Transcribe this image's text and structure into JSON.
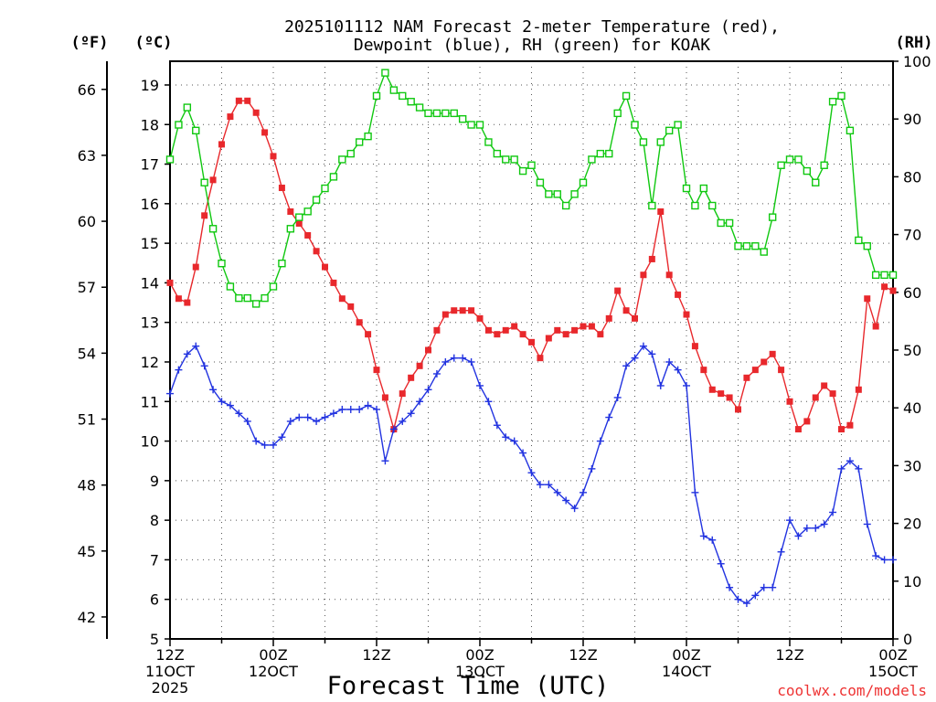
{
  "chart_data": {
    "type": "line",
    "title_line1": "2025101112 NAM Forecast 2-meter Temperature (red),",
    "title_line2": "Dewpoint (blue), RH (green) for KOAK",
    "xlabel": "Forecast Time (UTC)",
    "credit": "coolwx.com/models",
    "unit_f": "(ºF)",
    "unit_c": "(ºC)",
    "unit_rh": "(RH)",
    "x_range_hours": [
      0,
      84
    ],
    "c_range": [
      5,
      19.6
    ],
    "rh_range": [
      0,
      100
    ],
    "c_ticks": [
      "5",
      "6",
      "7",
      "8",
      "9",
      "10",
      "11",
      "12",
      "13",
      "14",
      "15",
      "16",
      "17",
      "18",
      "19"
    ],
    "f_ticks": [
      "42",
      "45",
      "48",
      "51",
      "54",
      "57",
      "60",
      "63",
      "66"
    ],
    "f_tick_values": [
      42,
      45,
      48,
      51,
      54,
      57,
      60,
      63,
      66
    ],
    "rh_ticks": [
      "0",
      "10",
      "20",
      "30",
      "40",
      "50",
      "60",
      "70",
      "80",
      "90",
      "100"
    ],
    "x_ticks": [
      {
        "hour": 0,
        "line1": "12Z",
        "line2": "11OCT",
        "line3": "2025"
      },
      {
        "hour": 12,
        "line1": "00Z",
        "line2": "12OCT",
        "line3": ""
      },
      {
        "hour": 24,
        "line1": "12Z",
        "line2": "",
        "line3": ""
      },
      {
        "hour": 36,
        "line1": "00Z",
        "line2": "13OCT",
        "line3": ""
      },
      {
        "hour": 48,
        "line1": "12Z",
        "line2": "",
        "line3": ""
      },
      {
        "hour": 60,
        "line1": "00Z",
        "line2": "14OCT",
        "line3": ""
      },
      {
        "hour": 72,
        "line1": "12Z",
        "line2": "",
        "line3": ""
      },
      {
        "hour": 84,
        "line1": "00Z",
        "line2": "15OCT",
        "line3": ""
      }
    ],
    "grid": true,
    "colors": {
      "temperature": "#e8282c",
      "dewpoint": "#2233e0",
      "rh": "#10c810"
    },
    "series": [
      {
        "name": "Temperature (red)",
        "unit": "C",
        "values": [
          14.0,
          13.6,
          13.5,
          14.4,
          15.7,
          16.6,
          17.5,
          18.2,
          18.6,
          18.6,
          18.3,
          17.8,
          17.2,
          16.4,
          15.8,
          15.5,
          15.2,
          14.8,
          14.4,
          14.0,
          13.6,
          13.4,
          13.0,
          12.7,
          11.8,
          11.1,
          10.3,
          11.2,
          11.6,
          11.9,
          12.3,
          12.8,
          13.2,
          13.3,
          13.3,
          13.3,
          13.1,
          12.8,
          12.7,
          12.8,
          12.9,
          12.7,
          12.5,
          12.1,
          12.6,
          12.8,
          12.7,
          12.8,
          12.9,
          12.9,
          12.7,
          13.1,
          13.8,
          13.3,
          13.1,
          14.2,
          14.6,
          15.8,
          14.2,
          13.7,
          13.2,
          12.4,
          11.8,
          11.3,
          11.2,
          11.1,
          10.8,
          11.6,
          11.8,
          12.0,
          12.2,
          11.8,
          11.0,
          10.3,
          10.5,
          11.1,
          11.4,
          11.2,
          10.3,
          10.4,
          11.3,
          13.6,
          12.9,
          13.9,
          13.8
        ]
      },
      {
        "name": "Dewpoint (blue)",
        "unit": "C",
        "values": [
          11.2,
          11.8,
          12.2,
          12.4,
          11.9,
          11.3,
          11.0,
          10.9,
          10.7,
          10.5,
          10.0,
          9.9,
          9.9,
          10.1,
          10.5,
          10.6,
          10.6,
          10.5,
          10.6,
          10.7,
          10.8,
          10.8,
          10.8,
          10.9,
          10.8,
          9.5,
          10.3,
          10.5,
          10.7,
          11.0,
          11.3,
          11.7,
          12.0,
          12.1,
          12.1,
          12.0,
          11.4,
          11.0,
          10.4,
          10.1,
          10.0,
          9.7,
          9.2,
          8.9,
          8.9,
          8.7,
          8.5,
          8.3,
          8.7,
          9.3,
          10.0,
          10.6,
          11.1,
          11.9,
          12.1,
          12.4,
          12.2,
          11.4,
          12.0,
          11.8,
          11.4,
          8.7,
          7.6,
          7.5,
          6.9,
          6.3,
          6.0,
          5.9,
          6.1,
          6.3,
          6.3,
          7.2,
          8.0,
          7.6,
          7.8,
          7.8,
          7.9,
          8.2,
          9.3,
          9.5,
          9.3,
          7.9,
          7.1,
          7.0,
          7.0
        ]
      },
      {
        "name": "RH (green)",
        "unit": "%",
        "values": [
          83,
          89,
          92,
          88,
          79,
          71,
          65,
          61,
          59,
          59,
          58,
          59,
          61,
          65,
          71,
          73,
          74,
          76,
          78,
          80,
          83,
          84,
          86,
          87,
          94,
          98,
          95,
          94,
          93,
          92,
          91,
          91,
          91,
          91,
          90,
          89,
          89,
          86,
          84,
          83,
          83,
          81,
          82,
          79,
          77,
          77,
          75,
          77,
          79,
          83,
          84,
          84,
          91,
          94,
          89,
          86,
          75,
          86,
          88,
          89,
          78,
          75,
          78,
          75,
          72,
          72,
          68,
          68,
          68,
          67,
          73,
          82,
          83,
          83,
          81,
          79,
          82,
          93,
          94,
          88,
          69,
          68,
          63,
          63,
          63
        ]
      }
    ]
  }
}
